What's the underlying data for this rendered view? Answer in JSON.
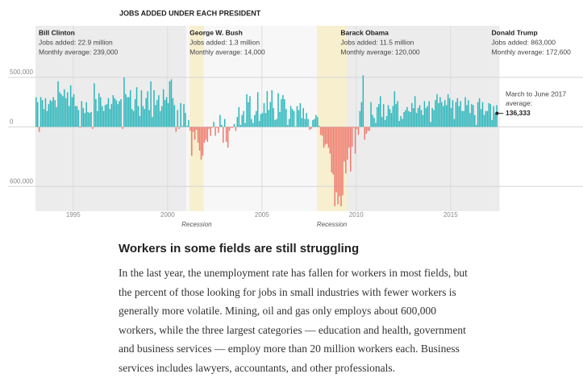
{
  "chart_data": {
    "type": "bar",
    "title": "JOBS ADDED UNDER EACH PRESIDENT",
    "xlim": [
      1993,
      2017.6
    ],
    "xticks": [
      1995,
      2000,
      2005,
      2010,
      2015
    ],
    "ylim": [
      -850000,
      1020000
    ],
    "yticks": [
      {
        "value": -600000,
        "label": "600,000"
      },
      0,
      {
        "value": 500000,
        "label": "500,000"
      }
    ],
    "grid": true,
    "positive_color": "#2bb6bb",
    "negative_color": "#ee7b70",
    "presidents": [
      {
        "name": "Bill Clinton",
        "start": 1993,
        "jobs_added": "Jobs added: 22.9 million",
        "monthly_average": "Monthly average: 239,000",
        "shade": "#ececec"
      },
      {
        "name": "George W. Bush",
        "start": 2001,
        "jobs_added": "Jobs added: 1.3 million",
        "monthly_average": "Monthly average: 14,000",
        "shade": "#f7f7f7"
      },
      {
        "name": "Barack Obama",
        "start": 2009,
        "jobs_added": "Jobs added: 11.5 million",
        "monthly_average": "Monthly average: 120,000",
        "shade": "#ececec"
      },
      {
        "name": "Donald Trump",
        "start": 2017,
        "jobs_added": "Jobs added: 863,000",
        "monthly_average": "Monthly average: 172,600",
        "shade": "#ececec"
      }
    ],
    "recessions": [
      {
        "label": "Recession",
        "start": 2001.17,
        "end": 2001.92
      },
      {
        "label": "Recession",
        "start": 2007.92,
        "end": 2009.5
      }
    ],
    "recession_color": "#f7efce",
    "annotation": {
      "text_lines": [
        "March to June 2017",
        "average:"
      ],
      "value": 136333,
      "value_label": "136,333"
    },
    "values": [
      300000,
      250000,
      -50000,
      300000,
      270000,
      180000,
      290000,
      160000,
      230000,
      270000,
      260000,
      300000,
      270000,
      200000,
      460000,
      350000,
      330000,
      310000,
      380000,
      290000,
      350000,
      210000,
      420000,
      300000,
      330000,
      210000,
      210000,
      170000,
      -10000,
      260000,
      190000,
      140000,
      250000,
      150000,
      140000,
      150000,
      -20000,
      440000,
      280000,
      160000,
      340000,
      300000,
      210000,
      160000,
      220000,
      230000,
      290000,
      180000,
      230000,
      320000,
      290000,
      270000,
      230000,
      260000,
      280000,
      -20000,
      500000,
      330000,
      300000,
      300000,
      370000,
      180000,
      160000,
      280000,
      400000,
      210000,
      110000,
      370000,
      210000,
      180000,
      290000,
      360000,
      170000,
      460000,
      100000,
      370000,
      220000,
      270000,
      320000,
      160000,
      210000,
      380000,
      270000,
      300000,
      240000,
      460000,
      480000,
      290000,
      220000,
      -50000,
      170000,
      -20000,
      240000,
      10000,
      230000,
      140000,
      10000,
      70000,
      -40000,
      -290000,
      -50000,
      -130000,
      -30000,
      -160000,
      -240000,
      -330000,
      -290000,
      -160000,
      -130000,
      -150000,
      -20000,
      -90000,
      -10000,
      50000,
      -90000,
      -10000,
      -60000,
      120000,
      20000,
      -160000,
      80000,
      -150000,
      -210000,
      -40000,
      -10000,
      -10000,
      30000,
      -40000,
      100000,
      200000,
      20000,
      120000,
      160000,
      40000,
      330000,
      250000,
      310000,
      80000,
      40000,
      120000,
      160000,
      350000,
      60000,
      130000,
      140000,
      240000,
      140000,
      360000,
      170000,
      250000,
      370000,
      190000,
      70000,
      80000,
      340000,
      150000,
      280000,
      320000,
      280000,
      180000,
      20000,
      80000,
      210000,
      180000,
      160000,
      5000,
      210000,
      170000,
      240000,
      90000,
      190000,
      80000,
      140000,
      80000,
      -30000,
      -20000,
      70000,
      80000,
      120000,
      100000,
      10000,
      -80000,
      -90000,
      -210000,
      -180000,
      -170000,
      -210000,
      -270000,
      -460000,
      -480000,
      -800000,
      -660000,
      -780000,
      -700000,
      -800000,
      -690000,
      -350000,
      -470000,
      -330000,
      -210000,
      -450000,
      -200000,
      -10000,
      -270000,
      -20000,
      -80000,
      160000,
      250000,
      520000,
      -130000,
      -70000,
      -40000,
      -40000,
      250000,
      120000,
      90000,
      40000,
      200000,
      230000,
      310000,
      100000,
      230000,
      70000,
      110000,
      220000,
      180000,
      140000,
      210000,
      360000,
      230000,
      260000,
      60000,
      110000,
      80000,
      150000,
      170000,
      200000,
      160000,
      150000,
      240000,
      190000,
      310000,
      140000,
      190000,
      220000,
      170000,
      120000,
      260000,
      190000,
      210000,
      260000,
      50000,
      190000,
      170000,
      270000,
      330000,
      240000,
      300000,
      250000,
      210000,
      270000,
      220000,
      330000,
      290000,
      190000,
      270000,
      80000,
      250000,
      290000,
      210000,
      260000,
      160000,
      160000,
      300000,
      220000,
      270000,
      140000,
      230000,
      220000,
      120000,
      20000,
      250000,
      290000,
      180000,
      250000,
      120000,
      160000,
      160000,
      240000,
      230000,
      70000,
      210000,
      140000,
      220000
    ]
  },
  "article": {
    "heading": "Workers in some fields are still struggling",
    "paragraph": "In the last year, the unemployment rate has fallen for workers in most fields, but the percent of those looking for jobs in small industries with fewer workers is generally more volatile. Mining, oil and gas only employs about 600,000 workers, while the three largest categories — education and health, government and business services — employ more than 20 million workers each. Business services includes lawyers, accountants, and other professionals."
  }
}
